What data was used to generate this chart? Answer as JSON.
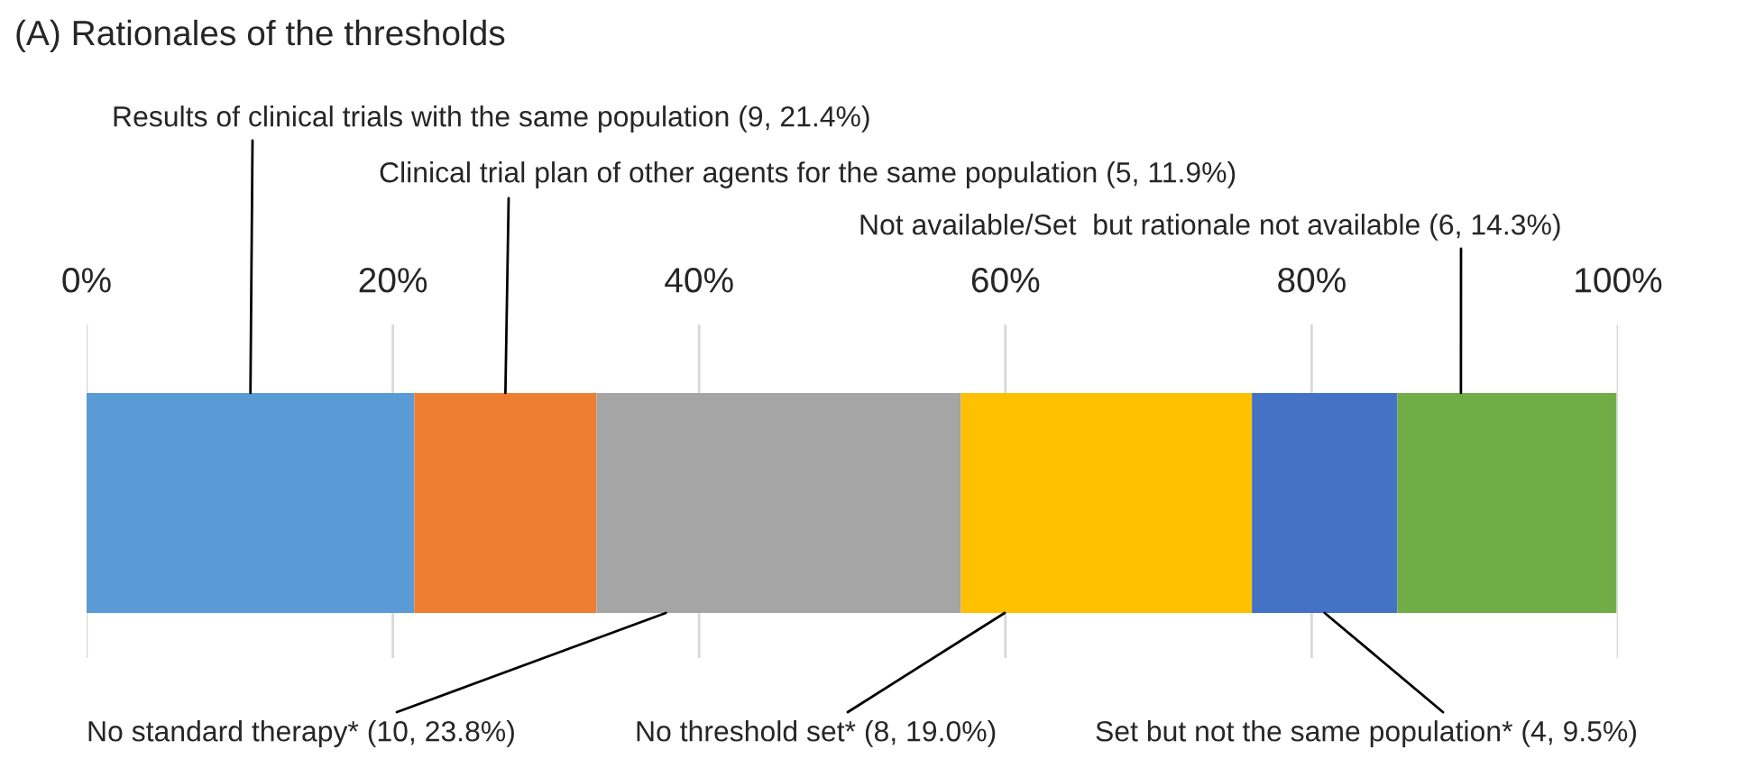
{
  "chart_data": {
    "type": "bar",
    "title": "(A) Rationales of the thresholds",
    "orientation": "horizontal",
    "stacked": true,
    "categories": [
      null
    ],
    "series": [
      {
        "name": "Results of clinical trials with the same population (9, 21.4%)",
        "color": "#5b9bd5",
        "values": [
          21.4
        ]
      },
      {
        "name": "Clinical trial plan of other agents for the same population (5, 11.9%)",
        "color": "#ed7d31",
        "values": [
          11.9
        ]
      },
      {
        "name": "No standard therapy* (10, 23.8%)",
        "color": "#a5a5a5",
        "values": [
          23.8
        ]
      },
      {
        "name": "No threshold set* (8, 19.0%)",
        "color": "#ffc000",
        "values": [
          19.0
        ]
      },
      {
        "name": "Set but not the same population* (4, 9.5%)",
        "color": "#4472c4",
        "values": [
          9.5
        ]
      },
      {
        "name": "Not available/Set  but rationale not available (6, 14.3%)",
        "color": "#70ad47",
        "values": [
          14.3
        ]
      }
    ],
    "xlim": [
      0,
      100
    ],
    "xticks": [
      {
        "value": 0,
        "label": "0%"
      },
      {
        "value": 20,
        "label": "20%"
      },
      {
        "value": 40,
        "label": "40%"
      },
      {
        "value": 60,
        "label": "60%"
      },
      {
        "value": 80,
        "label": "80%"
      },
      {
        "value": 100,
        "label": "100%"
      }
    ],
    "grid": "x",
    "legend": false,
    "tick_labels": "x"
  }
}
